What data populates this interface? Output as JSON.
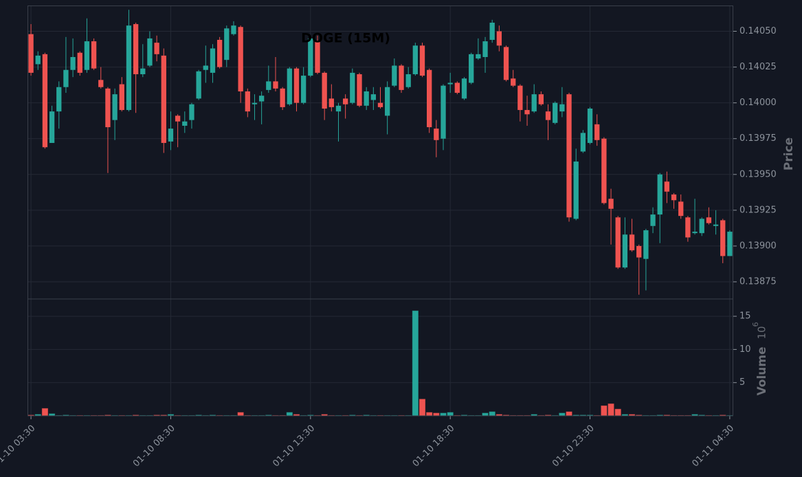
{
  "chart_data": {
    "type": "candlestick",
    "title": "DOGE (15M)",
    "ylabel": "Price",
    "y2label": "Volume",
    "y2_offset_base": "10",
    "y2_offset_exp": "6",
    "up_color": "#26a69a",
    "down_color": "#ef5350",
    "grid": true,
    "xlim": [
      -0.5,
      100.5
    ],
    "xticks": [
      {
        "value": 0,
        "label": "01-10 03:30"
      },
      {
        "value": 20,
        "label": "01-10 08:30"
      },
      {
        "value": 40,
        "label": "01-10 13:30"
      },
      {
        "value": 60,
        "label": "01-10 18:30"
      },
      {
        "value": 80,
        "label": "01-10 23:30"
      },
      {
        "value": 100,
        "label": "01-11 04:30"
      }
    ],
    "ylim": [
      0.13863,
      0.14068
    ],
    "yticks": [
      0.13875,
      {
        "value": 0.139,
        "label": "0.13900"
      },
      0.13925,
      {
        "value": 0.1395,
        "label": "0.13950"
      },
      0.13975,
      {
        "value": 0.14,
        "label": "0.14000"
      },
      0.14025,
      {
        "value": 0.1405,
        "label": "0.14050"
      }
    ],
    "y2lim": [
      0,
      17.6
    ],
    "y2ticks": [
      5,
      10,
      15
    ],
    "open": [
      0.14048,
      0.14027,
      0.14034,
      0.13972,
      0.13994,
      0.14011,
      0.14023,
      0.14035,
      0.14023,
      0.14043,
      0.14016,
      0.1401,
      0.13988,
      0.14013,
      0.13995,
      0.14055,
      0.1402,
      0.14026,
      0.14042,
      0.14033,
      0.13973,
      0.13991,
      0.13984,
      0.13988,
      0.14003,
      0.14023,
      0.14021,
      0.14044,
      0.1403,
      0.14048,
      0.14053,
      0.14008,
      0.13999,
      0.14001,
      0.14009,
      0.14015,
      0.1401,
      0.13999,
      0.14024,
      0.14,
      0.14019,
      0.14043,
      0.14021,
      0.14003,
      0.13994,
      0.14003,
      0.14,
      0.1402,
      0.13998,
      0.14002,
      0.14,
      0.13991,
      0.14012,
      0.14026,
      0.14011,
      0.1402,
      0.1404,
      0.14023,
      0.13982,
      0.13975,
      0.14013,
      0.14014,
      0.14003,
      0.14014,
      0.14031,
      0.14032,
      0.14044,
      0.1405,
      0.14039,
      0.14017,
      0.14012,
      0.13995,
      0.13994,
      0.14006,
      0.13994,
      0.13986,
      0.13994,
      0.14006,
      0.13919,
      0.13966,
      0.13972,
      0.13985,
      0.13975,
      0.13933,
      0.1392,
      0.13885,
      0.13908,
      0.139,
      0.13891,
      0.13914,
      0.13922,
      0.13945,
      0.13936,
      0.13931,
      0.1392,
      0.13909,
      0.13909,
      0.1392,
      0.13914,
      0.13918,
      0.13893
    ],
    "high": [
      0.14055,
      0.14036,
      0.14035,
      0.13998,
      0.14015,
      0.14046,
      0.14045,
      0.14036,
      0.14059,
      0.14045,
      0.14025,
      0.14011,
      0.1401,
      0.14018,
      0.14065,
      0.14056,
      0.14041,
      0.1405,
      0.14047,
      0.14038,
      0.13994,
      0.13992,
      0.13994,
      0.14,
      0.14023,
      0.1404,
      0.14041,
      0.14046,
      0.14054,
      0.14057,
      0.14054,
      0.1401,
      0.14006,
      0.14008,
      0.14026,
      0.14032,
      0.14011,
      0.14025,
      0.14025,
      0.14025,
      0.14046,
      0.14047,
      0.14022,
      0.14013,
      0.14,
      0.14006,
      0.14024,
      0.14021,
      0.14011,
      0.14011,
      0.14011,
      0.14015,
      0.14031,
      0.14027,
      0.14025,
      0.14042,
      0.14042,
      0.14024,
      0.13988,
      0.14013,
      0.14021,
      0.14015,
      0.14018,
      0.14035,
      0.14045,
      0.14046,
      0.14058,
      0.14054,
      0.1404,
      0.14023,
      0.14013,
      0.14005,
      0.14013,
      0.14008,
      0.13999,
      0.14001,
      0.14011,
      0.14007,
      0.13968,
      0.13981,
      0.13997,
      0.13992,
      0.13976,
      0.1394,
      0.13921,
      0.1392,
      0.13919,
      0.13901,
      0.13912,
      0.13927,
      0.13951,
      0.13952,
      0.13937,
      0.13936,
      0.13921,
      0.13933,
      0.1392,
      0.13927,
      0.13925,
      0.13919,
      0.13911
    ],
    "low": [
      0.14019,
      0.14023,
      0.13968,
      0.13972,
      0.13982,
      0.14007,
      0.14018,
      0.14019,
      0.14021,
      0.14023,
      0.1401,
      0.13951,
      0.13974,
      0.13994,
      0.13994,
      0.13993,
      0.14018,
      0.14025,
      0.14029,
      0.13965,
      0.13967,
      0.13969,
      0.13979,
      0.13982,
      0.14002,
      0.14014,
      0.14014,
      0.14024,
      0.14025,
      0.14047,
      0.14,
      0.1399,
      0.13988,
      0.13985,
      0.14007,
      0.14008,
      0.13995,
      0.13998,
      0.13994,
      0.13999,
      0.14018,
      0.1402,
      0.13988,
      0.13994,
      0.13973,
      0.13989,
      0.13999,
      0.13997,
      0.13995,
      0.13995,
      0.13996,
      0.13978,
      0.14011,
      0.14007,
      0.1401,
      0.14019,
      0.14018,
      0.13979,
      0.13962,
      0.13967,
      0.14007,
      0.14006,
      0.14002,
      0.14013,
      0.1403,
      0.14021,
      0.14042,
      0.14036,
      0.14015,
      0.14011,
      0.13987,
      0.13984,
      0.13993,
      0.13998,
      0.13974,
      0.13985,
      0.1399,
      0.13917,
      0.13918,
      0.13965,
      0.13971,
      0.1397,
      0.13929,
      0.13901,
      0.13884,
      0.13884,
      0.13896,
      0.13866,
      0.13869,
      0.13909,
      0.13902,
      0.1393,
      0.13926,
      0.13919,
      0.13903,
      0.13908,
      0.13907,
      0.13915,
      0.13908,
      0.13888,
      0.13893
    ],
    "close": [
      0.14021,
      0.14033,
      0.13969,
      0.13994,
      0.14011,
      0.14023,
      0.14032,
      0.14021,
      0.14043,
      0.14024,
      0.14011,
      0.13983,
      0.14006,
      0.13995,
      0.14054,
      0.1402,
      0.14024,
      0.14045,
      0.14034,
      0.13972,
      0.13982,
      0.13987,
      0.13987,
      0.13999,
      0.14022,
      0.14026,
      0.14038,
      0.14025,
      0.14052,
      0.14054,
      0.14008,
      0.13994,
      0.14,
      0.14005,
      0.14015,
      0.1401,
      0.13997,
      0.14024,
      0.14,
      0.14019,
      0.14045,
      0.14021,
      0.13996,
      0.13997,
      0.13998,
      0.13999,
      0.14021,
      0.13998,
      0.14008,
      0.14006,
      0.13997,
      0.14011,
      0.14026,
      0.14009,
      0.1402,
      0.1404,
      0.14019,
      0.13983,
      0.13974,
      0.14012,
      0.14014,
      0.14007,
      0.14017,
      0.14034,
      0.14034,
      0.14043,
      0.14056,
      0.1404,
      0.14016,
      0.14012,
      0.13995,
      0.13992,
      0.14006,
      0.13999,
      0.13988,
      0.14,
      0.13999,
      0.1392,
      0.13959,
      0.13979,
      0.13996,
      0.13974,
      0.1393,
      0.13926,
      0.13885,
      0.13908,
      0.13897,
      0.13892,
      0.13911,
      0.13922,
      0.1395,
      0.13938,
      0.13932,
      0.13921,
      0.13906,
      0.1391,
      0.13919,
      0.13916,
      0.13915,
      0.13893,
      0.1391
    ],
    "volume": [
      0.1,
      0.2,
      1.1,
      0.3,
      0.05,
      0.1,
      0.05,
      0.05,
      0.05,
      0.05,
      0.05,
      0.1,
      0.05,
      0.05,
      0.05,
      0.1,
      0.05,
      0.05,
      0.1,
      0.1,
      0.2,
      0.05,
      0.05,
      0.05,
      0.1,
      0.05,
      0.1,
      0.05,
      0.05,
      0.05,
      0.5,
      0.05,
      0.05,
      0.05,
      0.1,
      0.05,
      0.05,
      0.5,
      0.2,
      0.05,
      0.1,
      0.05,
      0.2,
      0.05,
      0.05,
      0.05,
      0.1,
      0.05,
      0.1,
      0.05,
      0.05,
      0.05,
      0.05,
      0.05,
      0.05,
      15.8,
      2.5,
      0.5,
      0.4,
      0.4,
      0.5,
      0.05,
      0.1,
      0.05,
      0.05,
      0.4,
      0.6,
      0.2,
      0.1,
      0.05,
      0.05,
      0.05,
      0.2,
      0.05,
      0.1,
      0.05,
      0.4,
      0.6,
      0.1,
      0.1,
      0.1,
      0.05,
      1.5,
      1.8,
      1.0,
      0.2,
      0.2,
      0.1,
      0.05,
      0.05,
      0.1,
      0.1,
      0.05,
      0.05,
      0.05,
      0.2,
      0.1,
      0.05,
      0.05,
      0.1,
      0.05
    ]
  }
}
